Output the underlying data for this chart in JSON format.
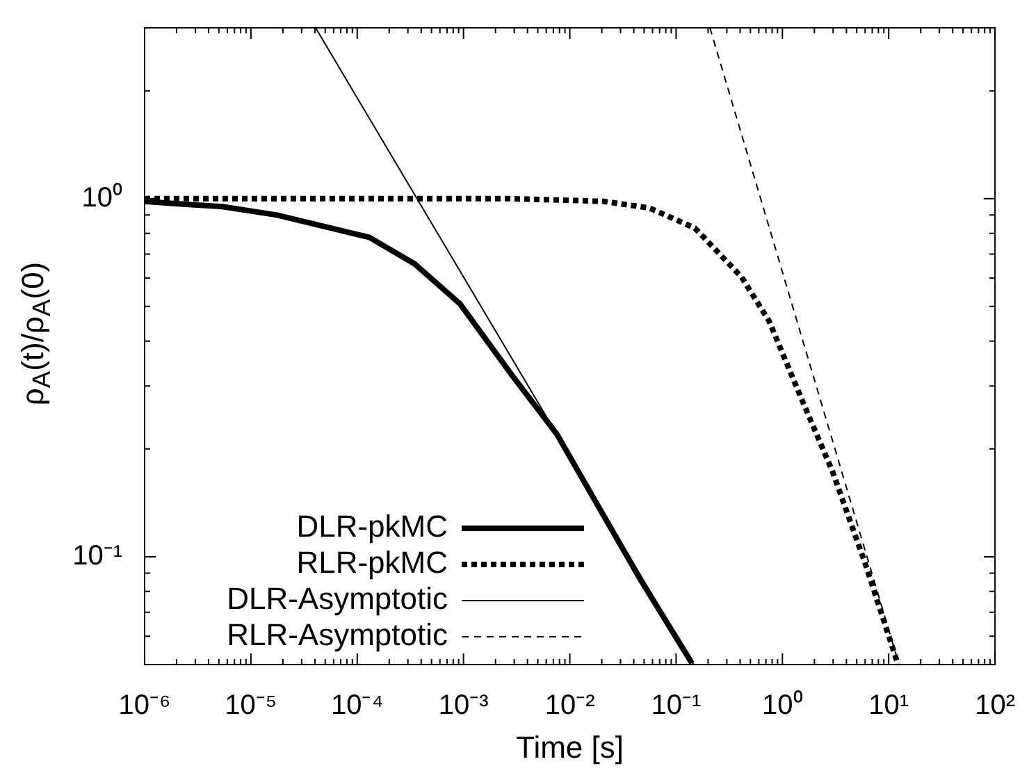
{
  "chart_data": {
    "type": "line",
    "xlabel": "Time [s]",
    "ylabel": "ρ$_{A}$(t)/ρ$_{A}$(0)",
    "log": "xy",
    "xlim": [
      1e-06,
      100
    ],
    "ylim": [
      0.05,
      3
    ],
    "grid": false,
    "legend": "bottom left",
    "marker": "none",
    "xticks": [
      {
        "value": 1e-06,
        "label": "10⁻⁶"
      },
      {
        "value": 2e-06,
        "label": null
      },
      {
        "value": 3e-06,
        "label": null
      },
      {
        "value": 4e-06,
        "label": null
      },
      {
        "value": 5e-06,
        "label": null
      },
      {
        "value": 6e-06,
        "label": null
      },
      {
        "value": 7e-06,
        "label": null
      },
      {
        "value": 8e-06,
        "label": null
      },
      {
        "value": 9e-06,
        "label": null
      },
      {
        "value": 1e-05,
        "label": "10⁻⁵"
      },
      {
        "value": 2e-05,
        "label": null
      },
      {
        "value": 3e-05,
        "label": null
      },
      {
        "value": 4e-05,
        "label": null
      },
      {
        "value": 5e-05,
        "label": null
      },
      {
        "value": 6e-05,
        "label": null
      },
      {
        "value": 7e-05,
        "label": null
      },
      {
        "value": 8e-05,
        "label": null
      },
      {
        "value": 9e-05,
        "label": null
      },
      {
        "value": 0.0001,
        "label": "10⁻⁴"
      },
      {
        "value": 0.0002,
        "label": null
      },
      {
        "value": 0.0003,
        "label": null
      },
      {
        "value": 0.0004,
        "label": null
      },
      {
        "value": 0.0005,
        "label": null
      },
      {
        "value": 0.0006,
        "label": null
      },
      {
        "value": 0.0007,
        "label": null
      },
      {
        "value": 0.0008,
        "label": null
      },
      {
        "value": 0.0009,
        "label": null
      },
      {
        "value": 0.001,
        "label": "10⁻³"
      },
      {
        "value": 0.002,
        "label": null
      },
      {
        "value": 0.003,
        "label": null
      },
      {
        "value": 0.004,
        "label": null
      },
      {
        "value": 0.005,
        "label": null
      },
      {
        "value": 0.006,
        "label": null
      },
      {
        "value": 0.007,
        "label": null
      },
      {
        "value": 0.008,
        "label": null
      },
      {
        "value": 0.009,
        "label": null
      },
      {
        "value": 0.01,
        "label": "10⁻²"
      },
      {
        "value": 0.02,
        "label": null
      },
      {
        "value": 0.03,
        "label": null
      },
      {
        "value": 0.04,
        "label": null
      },
      {
        "value": 0.05,
        "label": null
      },
      {
        "value": 0.06,
        "label": null
      },
      {
        "value": 0.07,
        "label": null
      },
      {
        "value": 0.08,
        "label": null
      },
      {
        "value": 0.09,
        "label": null
      },
      {
        "value": 0.1,
        "label": "10⁻¹"
      },
      {
        "value": 0.2,
        "label": null
      },
      {
        "value": 0.3,
        "label": null
      },
      {
        "value": 0.4,
        "label": null
      },
      {
        "value": 0.5,
        "label": null
      },
      {
        "value": 0.6,
        "label": null
      },
      {
        "value": 0.7,
        "label": null
      },
      {
        "value": 0.8,
        "label": null
      },
      {
        "value": 0.9,
        "label": null
      },
      {
        "value": 1,
        "label": "10⁰"
      },
      {
        "value": 2,
        "label": null
      },
      {
        "value": 3,
        "label": null
      },
      {
        "value": 4,
        "label": null
      },
      {
        "value": 5,
        "label": null
      },
      {
        "value": 6,
        "label": null
      },
      {
        "value": 7,
        "label": null
      },
      {
        "value": 8,
        "label": null
      },
      {
        "value": 9,
        "label": null
      },
      {
        "value": 10,
        "label": "10¹"
      },
      {
        "value": 20,
        "label": null
      },
      {
        "value": 30,
        "label": null
      },
      {
        "value": 40,
        "label": null
      },
      {
        "value": 50,
        "label": null
      },
      {
        "value": 60,
        "label": null
      },
      {
        "value": 70,
        "label": null
      },
      {
        "value": 80,
        "label": null
      },
      {
        "value": 90,
        "label": null
      },
      {
        "value": 100,
        "label": "10²"
      }
    ],
    "yticks": [
      {
        "value": 0.05,
        "label": null
      },
      {
        "value": 0.06,
        "label": null
      },
      {
        "value": 0.07,
        "label": null
      },
      {
        "value": 0.08,
        "label": null
      },
      {
        "value": 0.09,
        "label": null
      },
      {
        "value": 0.1,
        "label": "10⁻¹"
      },
      {
        "value": 0.2,
        "label": null
      },
      {
        "value": 0.3,
        "label": null
      },
      {
        "value": 0.4,
        "label": null
      },
      {
        "value": 0.5,
        "label": null
      },
      {
        "value": 0.6,
        "label": null
      },
      {
        "value": 0.7,
        "label": null
      },
      {
        "value": 0.8,
        "label": null
      },
      {
        "value": 0.9,
        "label": null
      },
      {
        "value": 1,
        "label": "10⁰"
      },
      {
        "value": 2,
        "label": null
      },
      {
        "value": 3,
        "label": null
      }
    ],
    "series": [
      {
        "name": "DLR-pkMC",
        "color": "#000000",
        "line_style": "solid",
        "x": [
          1e-06,
          2.2e-06,
          5.4e-06,
          1.76e-05,
          0.00013,
          0.000348,
          0.00093,
          0.00282,
          0.00755,
          0.0453,
          0.141
        ],
        "values": [
          0.983,
          0.966,
          0.95,
          0.9,
          0.78,
          0.657,
          0.508,
          0.323,
          0.22,
          0.0872,
          0.0504
        ]
      },
      {
        "name": "RLR-pkMC",
        "color": "#000000",
        "line_style": "dotted",
        "x": [
          1e-06,
          0.0001,
          0.00282,
          0.0208,
          0.0558,
          0.15,
          0.413,
          0.75,
          1.49,
          2.96,
          6.07,
          12.1
        ],
        "values": [
          1.0,
          1.0,
          1.0,
          0.983,
          0.942,
          0.828,
          0.604,
          0.455,
          0.279,
          0.173,
          0.095,
          0.0505
        ]
      },
      {
        "name": "DLR-Asymptotic",
        "color": "#000000",
        "line_style": "solid",
        "x": [
          4.06e-05,
          0.146
        ],
        "values": [
          3,
          0.05
        ]
      },
      {
        "name": "RLR-Asymptotic",
        "color": "#000000",
        "line_style": "dashed",
        "x": [
          0.208,
          12.5
        ],
        "values": [
          3,
          0.05
        ]
      }
    ]
  }
}
